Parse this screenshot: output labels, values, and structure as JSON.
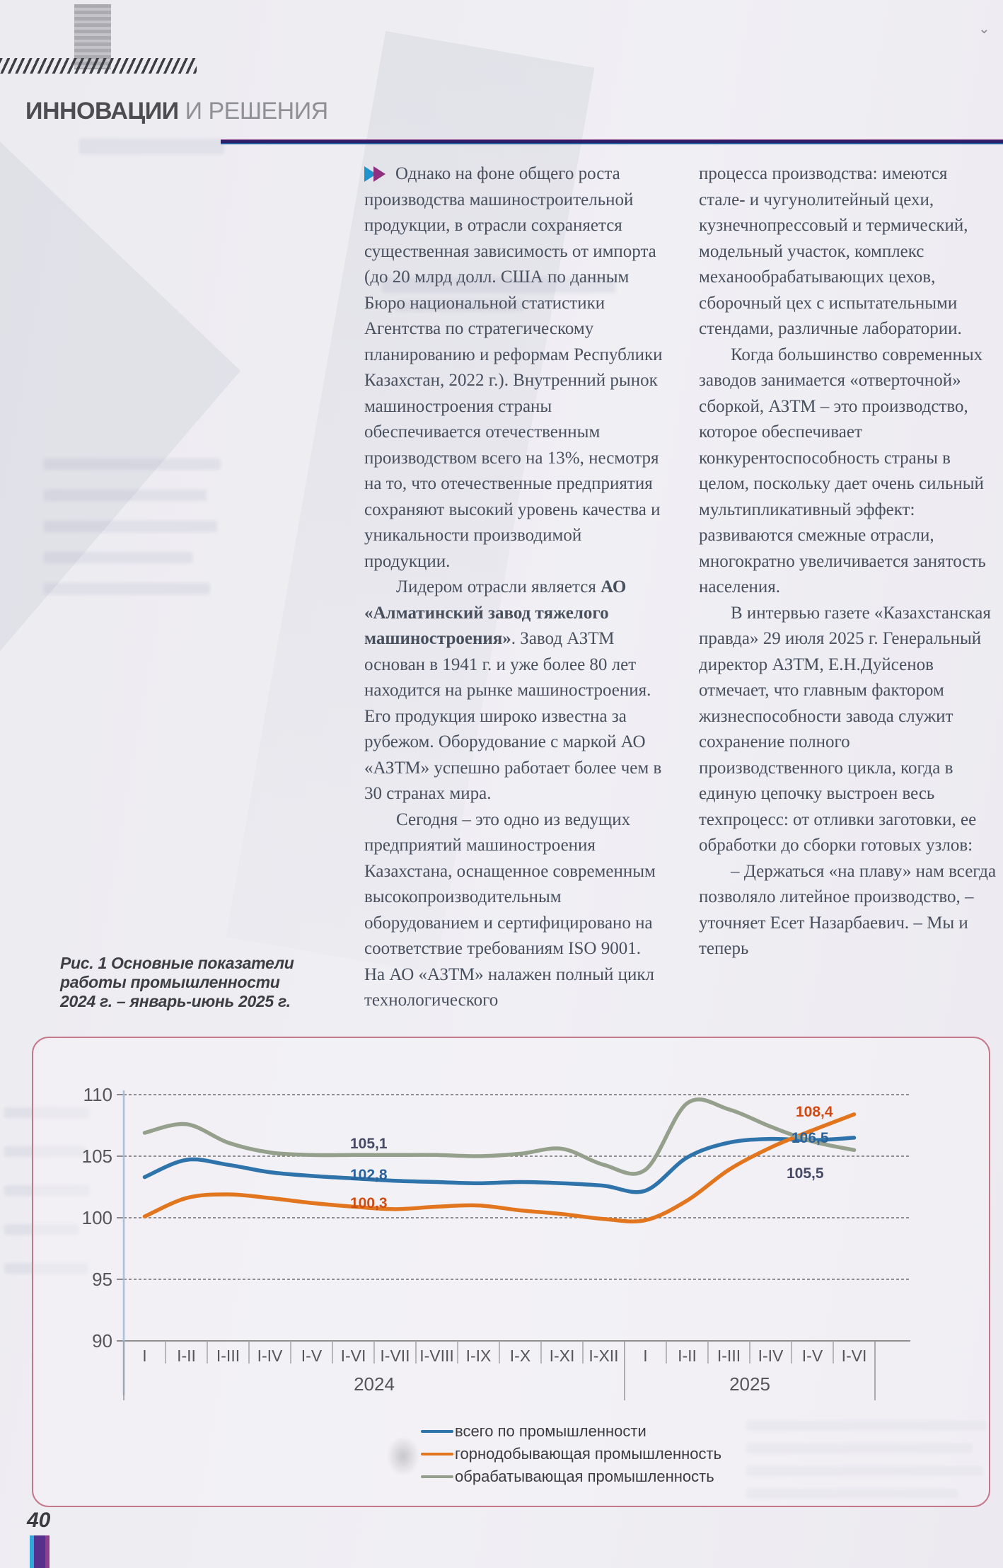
{
  "header": {
    "title_bold": "ИННОВАЦИИ",
    "title_light": "И РЕШЕНИЯ"
  },
  "article": {
    "col1": {
      "p1": "Однако на фоне общего роста производства машиностроительной продукции, в отрасли сохраняется существенная зависимость от импорта (до 20 млрд долл. США по данным Бюро национальной статистики Агентства по стратегическому планированию и реформам Республики Казахстан, 2022 г.). Внутренний рынок машиностроения страны обеспечивается отечественным производством всего на 13%, несмотря на то, что отечественные предприятия сохраняют высокий уровень качества и уникальности производимой продукции.",
      "p2_pre": "Лидером отрасли является ",
      "p2_bold": "АО «Алматинский завод тяжелого машиностроения»",
      "p2_post": ". Завод АЗТМ основан в 1941 г. и уже более 80 лет находится на рынке машиностроения. Его продукция широко известна за рубежом. Оборудование с маркой АО «АЗТМ» успешно работает более чем в 30 странах мира.",
      "p3": "Сегодня – это одно из ведущих предприятий машиностроения Казахстана, оснащенное современным высокопроизводительным оборудованием и сертифицировано на соответствие требованиям ISO 9001. На АО «АЗТМ» налажен полный цикл технологического"
    },
    "col2": {
      "p1": "процесса производства: имеются стале- и чугунолитейный цехи, кузнечнопрессовый и термический, модельный участок, комплекс механообрабатывающих цехов, сборочный цех с испытательными стендами, различные лаборатории.",
      "p2": "Когда большинство современных заводов занимается «отверточной» сборкой, АЗТМ – это производство, которое обеспечивает конкурентоспособность страны в целом, поскольку дает очень сильный мультипликативный эффект: развиваются смежные отрасли, многократно увеличивается занятость населения.",
      "p3": "В интервью газете «Казахстанская правда» 29 июля 2025 г. Генеральный директор АЗТМ, Е.Н.Дуйсенов отмечает, что главным фактором жизнеспособности завода служит сохранение полного производственного цикла, когда в единую цепочку выстроен весь техпроцесс: от отливки заготовки, ее обработки до сборки готовых узлов:",
      "p4": "– Держаться «на плаву» нам всегда позволяло литейное производство, – уточняет Есет Назарбаевич. – Мы и теперь"
    }
  },
  "figure": {
    "caption_line1": "Рис. 1 Основные показатели работы промышленности",
    "caption_line2": "2024 г. – январь-июнь 2025 г."
  },
  "chart_data": {
    "type": "line",
    "categories": [
      "I",
      "I-II",
      "I-III",
      "I-IV",
      "I-V",
      "I-VI",
      "I-VII",
      "I-VIII",
      "I-IX",
      "I-X",
      "I-XI",
      "I-XII",
      "I",
      "I-II",
      "I-III",
      "I-IV",
      "I-V",
      "I-VI"
    ],
    "year_groups": [
      {
        "label": "2024",
        "count": 12
      },
      {
        "label": "2025",
        "count": 6
      }
    ],
    "ylim": [
      90,
      110
    ],
    "yticks": [
      110,
      105,
      100,
      95,
      90
    ],
    "grid": "dashed-horizontal",
    "legend_position": "bottom",
    "series": [
      {
        "name": "всего по промышленности",
        "color": "#2e74ab",
        "label_color": "#2a639c",
        "mid_label": "102,8",
        "end_label": "106,5",
        "values": [
          103.3,
          104.7,
          104.3,
          103.7,
          103.4,
          103.2,
          103.0,
          102.9,
          102.8,
          102.9,
          102.8,
          102.6,
          102.2,
          104.9,
          106.1,
          106.4,
          106.3,
          106.5
        ]
      },
      {
        "name": "горнодобывающая промышленность",
        "color": "#e2761f",
        "label_color": "#cf4b14",
        "mid_label": "100,3",
        "end_label": "108,4",
        "values": [
          100.1,
          101.6,
          101.9,
          101.6,
          101.2,
          100.9,
          100.7,
          100.9,
          101.0,
          100.6,
          100.3,
          99.9,
          99.8,
          101.4,
          103.9,
          105.7,
          107.1,
          108.4
        ]
      },
      {
        "name": "обрабатывающая промышленность",
        "color": "#95a08c",
        "label_color": "#474a66",
        "mid_label": "105,1",
        "end_label": "105,5",
        "values": [
          106.9,
          107.6,
          106.1,
          105.3,
          105.1,
          105.1,
          105.1,
          105.1,
          105.0,
          105.2,
          105.6,
          104.3,
          103.9,
          109.3,
          108.8,
          107.4,
          106.2,
          105.5
        ]
      }
    ]
  },
  "footer": {
    "page_number": "40"
  }
}
